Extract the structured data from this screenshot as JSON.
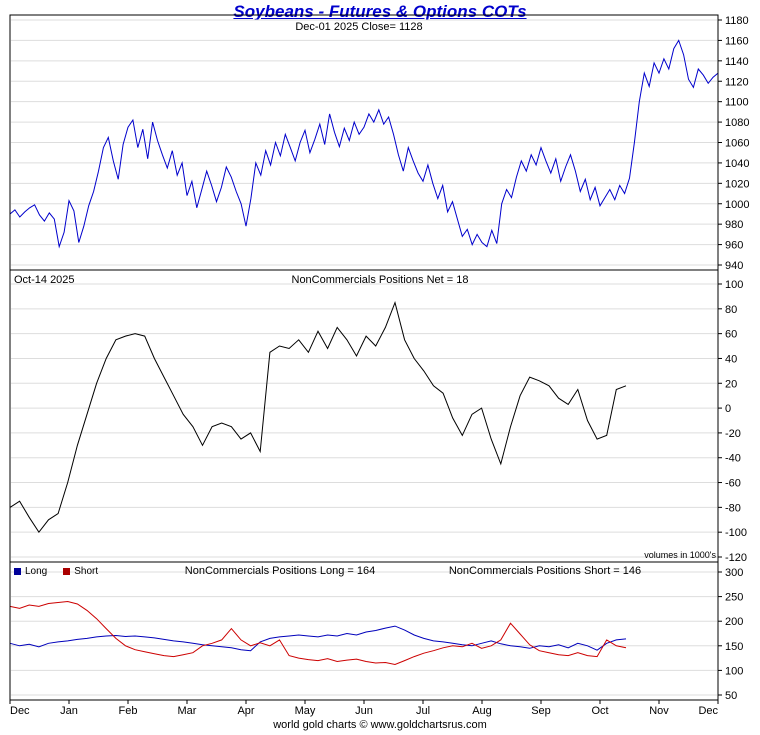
{
  "title": "Soybeans - Futures & Options COTs",
  "footer": "world gold charts © www.goldchartsrus.com",
  "colors": {
    "title": "#0000cc",
    "price_line": "#0000cc",
    "net_line": "#000000",
    "long_line": "#0000bb",
    "short_line": "#cc0000",
    "grid": "#dddddd",
    "border": "#000000"
  },
  "x_labels": [
    "Dec",
    "Jan",
    "Feb",
    "Mar",
    "Apr",
    "May",
    "Jun",
    "Jul",
    "Aug",
    "Sep",
    "Oct",
    "Nov",
    "Dec"
  ],
  "chart_data": [
    {
      "type": "line",
      "name": "price",
      "title": "Dec-01  2025   Close= 1128",
      "ylim": [
        940,
        1180
      ],
      "ytick_step": 20,
      "x_span": 1.0,
      "color": "#0000cc",
      "values": [
        990,
        994,
        987,
        992,
        996,
        999,
        989,
        983,
        991,
        985,
        958,
        972,
        1003,
        993,
        962,
        978,
        998,
        1012,
        1032,
        1055,
        1065,
        1042,
        1024,
        1058,
        1075,
        1082,
        1055,
        1073,
        1044,
        1080,
        1062,
        1048,
        1035,
        1052,
        1028,
        1040,
        1008,
        1022,
        996,
        1014,
        1032,
        1018,
        1002,
        1016,
        1036,
        1026,
        1012,
        1000,
        978,
        1005,
        1040,
        1028,
        1052,
        1038,
        1060,
        1047,
        1068,
        1055,
        1042,
        1060,
        1072,
        1050,
        1063,
        1078,
        1058,
        1088,
        1070,
        1056,
        1074,
        1062,
        1080,
        1068,
        1075,
        1088,
        1080,
        1092,
        1078,
        1085,
        1068,
        1048,
        1032,
        1055,
        1042,
        1030,
        1022,
        1038,
        1020,
        1005,
        1018,
        992,
        1002,
        985,
        968,
        975,
        960,
        970,
        962,
        958,
        974,
        961,
        1000,
        1014,
        1006,
        1026,
        1042,
        1032,
        1048,
        1038,
        1055,
        1042,
        1030,
        1044,
        1022,
        1036,
        1048,
        1032,
        1012,
        1024,
        1004,
        1016,
        998,
        1006,
        1014,
        1004,
        1018,
        1010,
        1025,
        1060,
        1100,
        1128,
        1115,
        1138,
        1128,
        1142,
        1132,
        1152,
        1160,
        1146,
        1122,
        1114,
        1132,
        1126,
        1118,
        1124,
        1128
      ]
    },
    {
      "type": "line",
      "name": "noncommercials-net",
      "date_label": "Oct-14  2025",
      "title": "NonCommercials Positions Net = 18",
      "note": "volumes in 1000's",
      "ylim": [
        -120,
        100
      ],
      "ytick_step": 20,
      "x_span": 0.87,
      "color": "#000000",
      "values": [
        -80,
        -75,
        -88,
        -100,
        -90,
        -85,
        -60,
        -30,
        -5,
        20,
        40,
        55,
        58,
        60,
        58,
        40,
        25,
        10,
        -5,
        -15,
        -30,
        -15,
        -12,
        -15,
        -25,
        -20,
        -35,
        45,
        50,
        48,
        55,
        45,
        62,
        48,
        65,
        55,
        42,
        58,
        50,
        65,
        85,
        55,
        40,
        30,
        18,
        12,
        -8,
        -22,
        -5,
        0,
        -25,
        -45,
        -15,
        10,
        25,
        22,
        18,
        8,
        3,
        15,
        -10,
        -25,
        -22,
        15,
        18
      ]
    },
    {
      "type": "line",
      "name": "noncommercials-long-short",
      "title_long": "NonCommercials Positions Long = 164",
      "title_short": "NonCommercials Positions Short = 146",
      "ylim": [
        50,
        300
      ],
      "ytick_step": 50,
      "x_span": 0.87,
      "legend": [
        {
          "label": "Long",
          "color": "#000099"
        },
        {
          "label": "Short",
          "color": "#aa0000"
        }
      ],
      "series": [
        {
          "name": "Long",
          "color": "#0000bb",
          "values": [
            155,
            150,
            153,
            148,
            155,
            158,
            160,
            163,
            165,
            168,
            170,
            171,
            169,
            170,
            168,
            166,
            163,
            160,
            158,
            155,
            152,
            150,
            148,
            146,
            142,
            140,
            158,
            165,
            168,
            170,
            172,
            170,
            168,
            172,
            170,
            175,
            172,
            178,
            181,
            186,
            190,
            182,
            172,
            165,
            160,
            158,
            155,
            152,
            150,
            155,
            160,
            154,
            150,
            148,
            145,
            150,
            148,
            152,
            146,
            155,
            150,
            141,
            155,
            162,
            164
          ]
        },
        {
          "name": "Short",
          "color": "#cc0000",
          "values": [
            230,
            226,
            233,
            230,
            236,
            238,
            240,
            235,
            222,
            205,
            185,
            165,
            150,
            142,
            138,
            134,
            130,
            128,
            132,
            136,
            150,
            155,
            162,
            185,
            162,
            150,
            156,
            150,
            162,
            130,
            125,
            122,
            120,
            124,
            118,
            121,
            123,
            118,
            115,
            116,
            112,
            120,
            128,
            135,
            140,
            146,
            150,
            148,
            155,
            145,
            150,
            162,
            196,
            174,
            152,
            140,
            136,
            132,
            130,
            136,
            130,
            128,
            162,
            150,
            146
          ]
        }
      ]
    }
  ]
}
